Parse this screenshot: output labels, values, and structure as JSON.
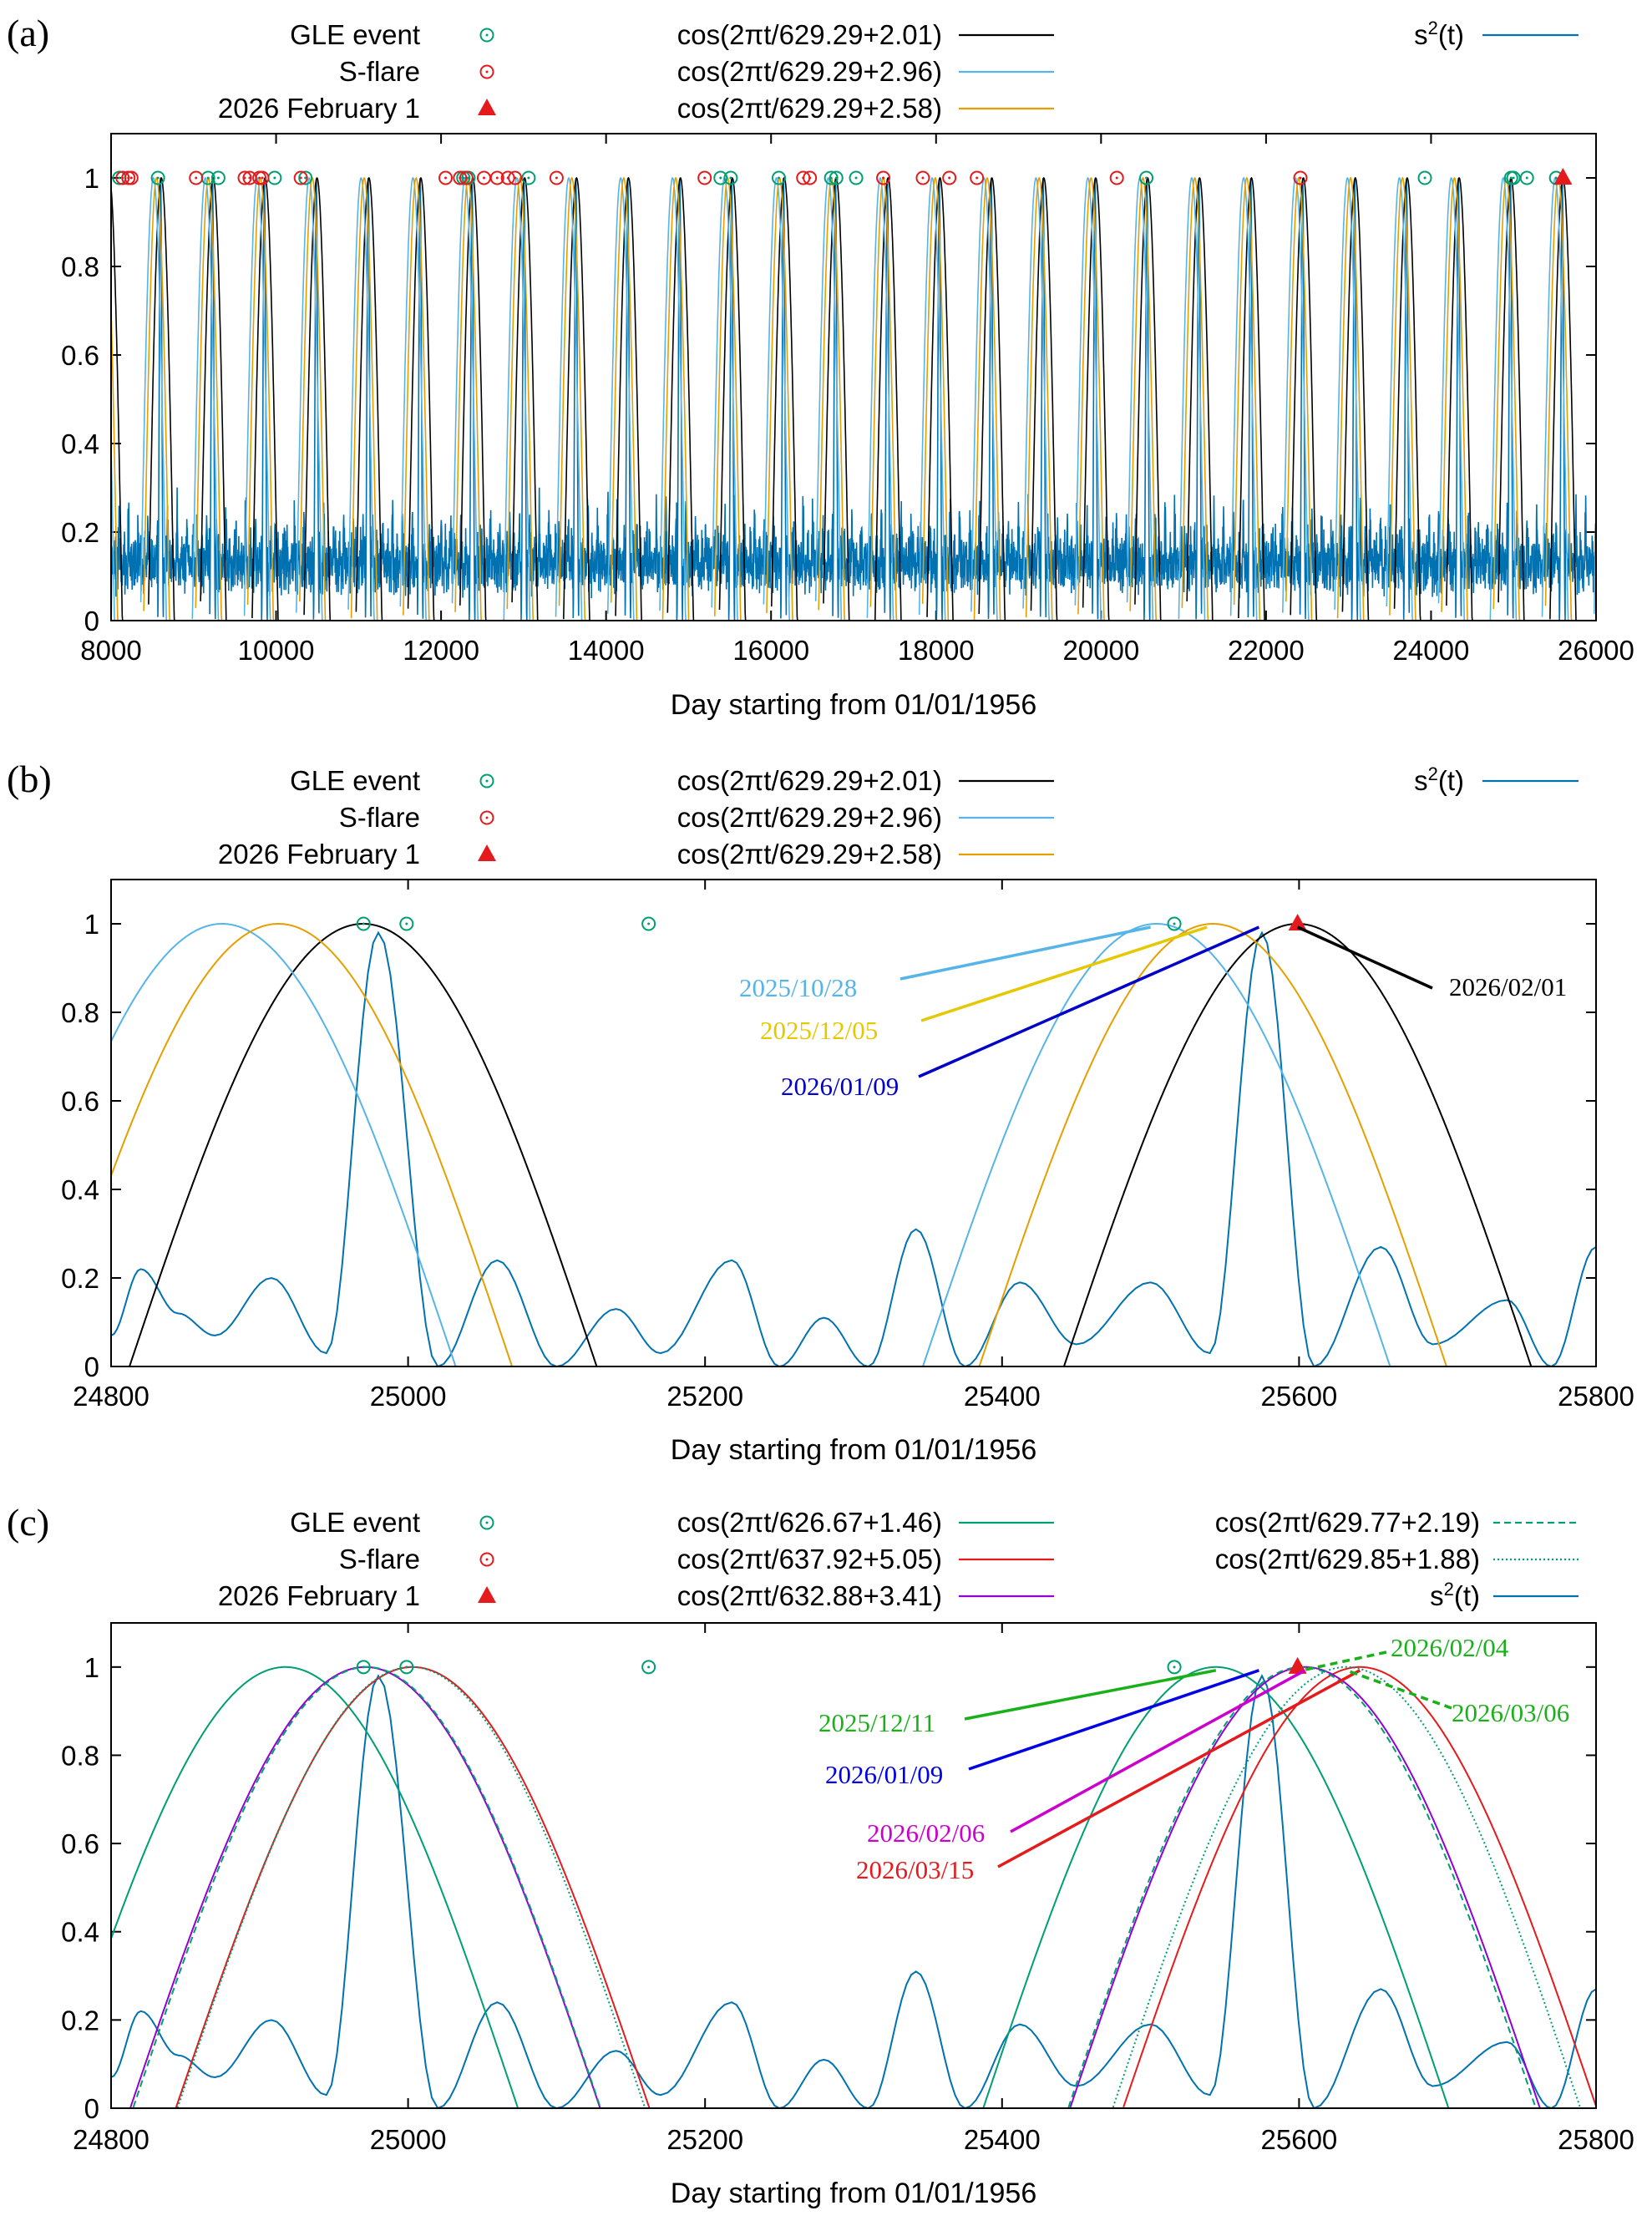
{
  "chart_data": [
    {
      "panel": "(a)",
      "type": "line",
      "xlabel": "Day starting from 01/01/1956",
      "ylabel": "",
      "xlim": [
        8000,
        26000
      ],
      "ylim": [
        0,
        1.1
      ],
      "xticks": [
        8000,
        10000,
        12000,
        14000,
        16000,
        18000,
        20000,
        22000,
        24000,
        26000
      ],
      "yticks": [
        0,
        0.2,
        0.4,
        0.6,
        0.8,
        1
      ],
      "legend": [
        {
          "label": "GLE event",
          "kind": "gle"
        },
        {
          "label": "S-flare",
          "kind": "sflare"
        },
        {
          "label": "2026 February 1",
          "kind": "feb1"
        },
        {
          "label": "cos(2πt/629.29+2.01)",
          "kind": "line",
          "color": "#000000"
        },
        {
          "label": "cos(2πt/629.29+2.96)",
          "kind": "line",
          "color": "#56b4e9"
        },
        {
          "label": "cos(2πt/629.29+2.58)",
          "kind": "line",
          "color": "#e69f00"
        },
        {
          "label": "s²(t)",
          "kind": "line",
          "color": "#0072b2"
        }
      ],
      "series": [
        {
          "name": "cos(2πt/629.29+2.01)",
          "period": 629.29,
          "phase": 2.01,
          "color": "#000000"
        },
        {
          "name": "cos(2πt/629.29+2.96)",
          "period": 629.29,
          "phase": 2.96,
          "color": "#56b4e9"
        },
        {
          "name": "cos(2πt/629.29+2.58)",
          "period": 629.29,
          "phase": 2.58,
          "color": "#e69f00"
        }
      ],
      "gle_events": [
        8100,
        8568,
        9176,
        9300,
        9983,
        10356,
        12270,
        12332,
        13061,
        15388,
        15511,
        16094,
        16728,
        16790,
        17031,
        20549,
        23925,
        24970,
        24999,
        25162,
        25516
      ],
      "s_flares": [
        8140,
        8210,
        8246,
        9030,
        9620,
        9680,
        9798,
        9833,
        10300,
        12055,
        12230,
        12306,
        12520,
        12680,
        12810,
        12896,
        13400,
        15195,
        16390,
        16470,
        17360,
        17840,
        18161,
        18495,
        20191,
        22416
      ],
      "feb1_marker": {
        "x": 25599,
        "y": 1
      }
    },
    {
      "panel": "(b)",
      "type": "line",
      "xlabel": "Day starting from 01/01/1956",
      "ylabel": "",
      "xlim": [
        24800,
        25800
      ],
      "ylim": [
        0,
        1.1
      ],
      "xticks": [
        24800,
        25000,
        25200,
        25400,
        25600,
        25800
      ],
      "yticks": [
        0,
        0.2,
        0.4,
        0.6,
        0.8,
        1
      ],
      "legend": [
        {
          "label": "GLE event",
          "kind": "gle"
        },
        {
          "label": "S-flare",
          "kind": "sflare"
        },
        {
          "label": "2026 February 1",
          "kind": "feb1"
        },
        {
          "label": "cos(2πt/629.29+2.01)",
          "kind": "line",
          "color": "#000000"
        },
        {
          "label": "cos(2πt/629.29+2.96)",
          "kind": "line",
          "color": "#56b4e9"
        },
        {
          "label": "cos(2πt/629.29+2.58)",
          "kind": "line",
          "color": "#e69f00"
        },
        {
          "label": "s²(t)",
          "kind": "line",
          "color": "#0072b2"
        }
      ],
      "series": [
        {
          "name": "cos(2πt/629.29+2.01)",
          "period": 629.29,
          "phase": 2.01,
          "color": "#000000"
        },
        {
          "name": "cos(2πt/629.29+2.96)",
          "period": 629.29,
          "phase": 2.96,
          "color": "#56b4e9"
        },
        {
          "name": "cos(2πt/629.29+2.58)",
          "period": 629.29,
          "phase": 2.58,
          "color": "#e69f00"
        }
      ],
      "s2_points": [
        [
          24800,
          0.07
        ],
        [
          24820,
          0.22
        ],
        [
          24845,
          0.12
        ],
        [
          24870,
          0.07
        ],
        [
          24908,
          0.2
        ],
        [
          24945,
          0.03
        ],
        [
          24980,
          0.98
        ],
        [
          25020,
          0.0
        ],
        [
          25060,
          0.24
        ],
        [
          25100,
          0.0
        ],
        [
          25140,
          0.13
        ],
        [
          25170,
          0.03
        ],
        [
          25218,
          0.24
        ],
        [
          25250,
          0.0
        ],
        [
          25280,
          0.11
        ],
        [
          25310,
          0.0
        ],
        [
          25342,
          0.31
        ],
        [
          25375,
          0.0
        ],
        [
          25412,
          0.19
        ],
        [
          25450,
          0.05
        ],
        [
          25500,
          0.19
        ],
        [
          25540,
          0.03
        ],
        [
          25575,
          0.98
        ],
        [
          25610,
          0.0
        ],
        [
          25655,
          0.27
        ],
        [
          25690,
          0.05
        ],
        [
          25740,
          0.15
        ],
        [
          25770,
          0.0
        ],
        [
          25800,
          0.27
        ]
      ],
      "gle_events": [
        24970,
        24999,
        25162,
        25516
      ],
      "s_flares": [],
      "feb1_marker": {
        "x": 25599,
        "y": 1
      },
      "annotations": [
        {
          "text": "2025/10/28",
          "color": "#56b4e9",
          "target_x": 25500
        },
        {
          "text": "2025/12/05",
          "color": "#e6c800",
          "target_x": 25538
        },
        {
          "text": "2026/01/09",
          "color": "#0000c8",
          "target_x": 25573
        },
        {
          "text": "2026/02/01",
          "color": "#000000",
          "target_x": 25599
        }
      ]
    },
    {
      "panel": "(c)",
      "type": "line",
      "xlabel": "Day starting from 01/01/1956",
      "ylabel": "",
      "xlim": [
        24800,
        25800
      ],
      "ylim": [
        0,
        1.1
      ],
      "xticks": [
        24800,
        25000,
        25200,
        25400,
        25600,
        25800
      ],
      "yticks": [
        0,
        0.2,
        0.4,
        0.6,
        0.8,
        1
      ],
      "legend": [
        {
          "label": "GLE event",
          "kind": "gle"
        },
        {
          "label": "S-flare",
          "kind": "sflare"
        },
        {
          "label": "2026 February 1",
          "kind": "feb1"
        },
        {
          "label": "cos(2πt/626.67+1.46)",
          "kind": "line",
          "color": "#009e73"
        },
        {
          "label": "cos(2πt/637.92+5.05)",
          "kind": "line",
          "color": "#e41a1c"
        },
        {
          "label": "cos(2πt/632.88+3.41)",
          "kind": "line",
          "color": "#9400d3"
        },
        {
          "label": "cos(2πt/629.77+2.19)",
          "kind": "dashed",
          "color": "#009e73"
        },
        {
          "label": "cos(2πt/629.85+1.88)",
          "kind": "dotted",
          "color": "#009e73"
        },
        {
          "label": "s²(t)",
          "kind": "line",
          "color": "#0072b2"
        }
      ],
      "series": [
        {
          "name": "cos(2πt/626.67+1.46)",
          "period": 626.67,
          "phase": 1.46,
          "color": "#009e73"
        },
        {
          "name": "cos(2πt/637.92+5.05)",
          "period": 637.92,
          "phase": 5.05,
          "color": "#e41a1c"
        },
        {
          "name": "cos(2πt/632.88+3.41)",
          "period": 632.88,
          "phase": 3.41,
          "color": "#9400d3"
        },
        {
          "name": "cos(2πt/629.77+2.19)",
          "period": 629.77,
          "phase": 2.19,
          "color": "#009e73",
          "dash": "dashed"
        },
        {
          "name": "cos(2πt/629.85+1.88)",
          "period": 629.85,
          "phase": 1.88,
          "color": "#009e73",
          "dash": "dotted"
        }
      ],
      "s2_points": [
        [
          24800,
          0.07
        ],
        [
          24820,
          0.22
        ],
        [
          24845,
          0.12
        ],
        [
          24870,
          0.07
        ],
        [
          24908,
          0.2
        ],
        [
          24945,
          0.03
        ],
        [
          24980,
          0.98
        ],
        [
          25020,
          0.0
        ],
        [
          25060,
          0.24
        ],
        [
          25100,
          0.0
        ],
        [
          25140,
          0.13
        ],
        [
          25170,
          0.03
        ],
        [
          25218,
          0.24
        ],
        [
          25250,
          0.0
        ],
        [
          25280,
          0.11
        ],
        [
          25310,
          0.0
        ],
        [
          25342,
          0.31
        ],
        [
          25375,
          0.0
        ],
        [
          25412,
          0.19
        ],
        [
          25450,
          0.05
        ],
        [
          25500,
          0.19
        ],
        [
          25540,
          0.03
        ],
        [
          25575,
          0.98
        ],
        [
          25610,
          0.0
        ],
        [
          25655,
          0.27
        ],
        [
          25690,
          0.05
        ],
        [
          25740,
          0.15
        ],
        [
          25770,
          0.0
        ],
        [
          25800,
          0.27
        ]
      ],
      "gle_events": [
        24970,
        24999,
        25162,
        25516
      ],
      "s_flares": [],
      "feb1_marker": {
        "x": 25599,
        "y": 1
      },
      "annotations": [
        {
          "text": "2025/12/11",
          "color": "#1ab01a",
          "target_x": 25544
        },
        {
          "text": "2026/01/09",
          "color": "#0000e6",
          "target_x": 25573
        },
        {
          "text": "2026/02/06",
          "color": "#cc00cc",
          "target_x": 25604
        },
        {
          "text": "2026/03/15",
          "color": "#e41a1c",
          "target_x": 25641
        },
        {
          "text": "2026/02/04",
          "color": "#1ab01a",
          "target_x": 25602
        },
        {
          "text": "2026/03/06",
          "color": "#1ab01a",
          "target_x": 25632
        }
      ]
    }
  ]
}
